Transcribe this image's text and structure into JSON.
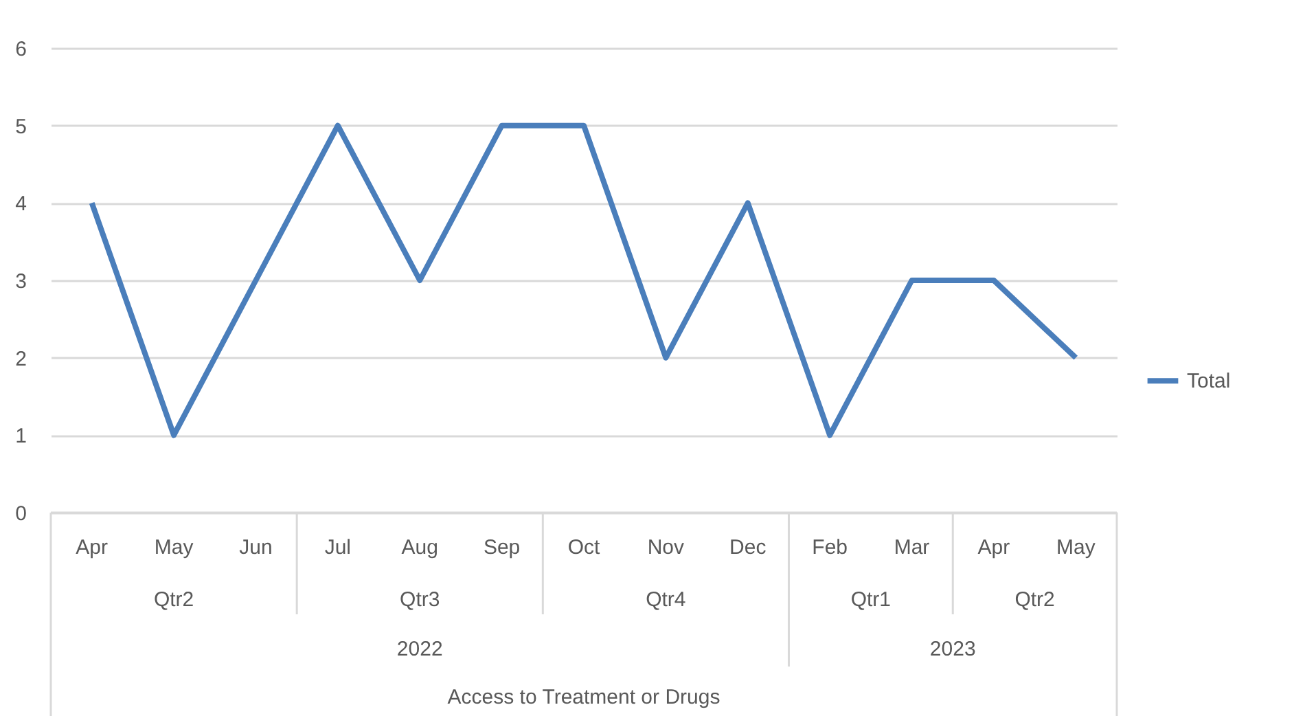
{
  "chart_data": {
    "type": "line",
    "categories": [
      "Apr",
      "May",
      "Jun",
      "Jul",
      "Aug",
      "Sep",
      "Oct",
      "Nov",
      "Dec",
      "Feb",
      "Mar",
      "Apr",
      "May"
    ],
    "series": [
      {
        "name": "Total",
        "color": "#4a7ebb",
        "values": [
          4,
          1,
          3,
          5,
          3,
          5,
          5,
          2,
          4,
          1,
          3,
          3,
          2
        ]
      }
    ],
    "annotations": [
      "Qtr2",
      "Qtr3",
      "Qtr4",
      "Qtr1",
      "Qtr2",
      "2022",
      "2023",
      "Access to Treatment or Drugs"
    ],
    "ylim": [
      0,
      6
    ],
    "yticks": [
      0,
      1,
      2,
      3,
      4,
      5,
      6
    ],
    "grid": "y",
    "legend": "right",
    "marker": "none",
    "line_style": "solid"
  }
}
